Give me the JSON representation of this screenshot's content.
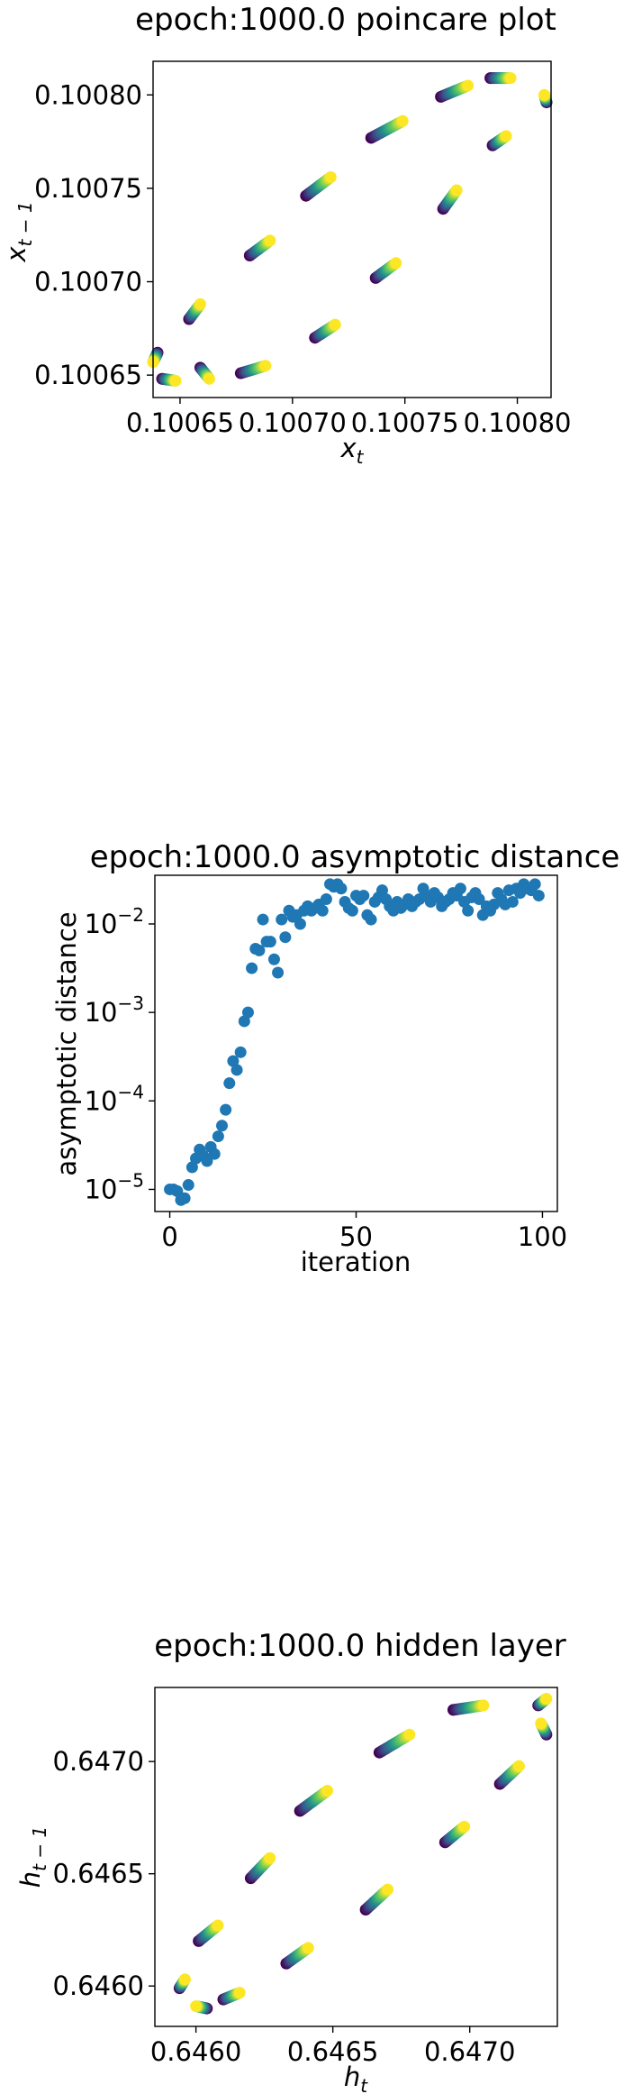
{
  "chart_data": [
    {
      "type": "scatter",
      "title": "epoch:1000.0 poincare plot",
      "xlabel_base": "x",
      "xlabel_sub": "t",
      "ylabel_base": "x",
      "ylabel_sub": "t − 1",
      "xlim": [
        0.100638,
        0.100815
      ],
      "ylim": [
        0.100638,
        0.100818
      ],
      "xticks": [
        0.10065,
        0.1007,
        0.10075,
        0.1008
      ],
      "xtick_labels": [
        "0.10065",
        "0.10070",
        "0.10075",
        "0.10080"
      ],
      "yticks": [
        0.10065,
        0.1007,
        0.10075,
        0.1008
      ],
      "ytick_labels": [
        "0.10065",
        "0.10070",
        "0.10075",
        "0.10080"
      ],
      "colormap": "viridis",
      "grid": false,
      "segments": [
        {
          "from": [
            0.100659,
            0.100654
          ],
          "to": [
            0.100663,
            0.100648
          ]
        },
        {
          "from": [
            0.10064,
            0.100662
          ],
          "to": [
            0.100638,
            0.100657
          ]
        },
        {
          "from": [
            0.100642,
            0.100648
          ],
          "to": [
            0.100648,
            0.100647
          ]
        },
        {
          "from": [
            0.100654,
            0.10068
          ],
          "to": [
            0.100659,
            0.100688
          ]
        },
        {
          "from": [
            0.100681,
            0.100714
          ],
          "to": [
            0.10069,
            0.100722
          ]
        },
        {
          "from": [
            0.100706,
            0.100746
          ],
          "to": [
            0.100717,
            0.100756
          ]
        },
        {
          "from": [
            0.100735,
            0.100777
          ],
          "to": [
            0.100749,
            0.100786
          ]
        },
        {
          "from": [
            0.100766,
            0.100799
          ],
          "to": [
            0.100778,
            0.100805
          ]
        },
        {
          "from": [
            0.100788,
            0.100809
          ],
          "to": [
            0.100797,
            0.100809
          ]
        },
        {
          "from": [
            0.100813,
            0.100796
          ],
          "to": [
            0.100812,
            0.1008
          ]
        },
        {
          "from": [
            0.100789,
            0.100773
          ],
          "to": [
            0.100795,
            0.100778
          ]
        },
        {
          "from": [
            0.100767,
            0.100739
          ],
          "to": [
            0.100773,
            0.100749
          ]
        },
        {
          "from": [
            0.100737,
            0.100702
          ],
          "to": [
            0.100746,
            0.10071
          ]
        },
        {
          "from": [
            0.10071,
            0.10067
          ],
          "to": [
            0.100719,
            0.100677
          ]
        },
        {
          "from": [
            0.100677,
            0.100651
          ],
          "to": [
            0.100688,
            0.100655
          ]
        }
      ]
    },
    {
      "type": "scatter",
      "title": "epoch:1000.0 asymptotic distance",
      "xlabel": "iteration",
      "ylabel": "asymptotic distance",
      "yscale": "log",
      "xlim": [
        -4,
        104
      ],
      "ylim_log10": [
        -5.25,
        -1.45
      ],
      "xticks": [
        0,
        50,
        100
      ],
      "xtick_labels": [
        "0",
        "50",
        "100"
      ],
      "yticks_log10": [
        -5,
        -4,
        -3,
        -2
      ],
      "ytick_base": "10",
      "ytick_exponents": [
        "−5",
        "−4",
        "−3",
        "−2"
      ],
      "color": "#1f77b4",
      "grid": false,
      "x": [
        0,
        1,
        2,
        3,
        4,
        5,
        6,
        7,
        8,
        9,
        10,
        11,
        12,
        13,
        14,
        15,
        16,
        17,
        18,
        19,
        20,
        21,
        22,
        23,
        24,
        25,
        26,
        27,
        28,
        29,
        30,
        31,
        32,
        33,
        34,
        35,
        36,
        37,
        38,
        39,
        40,
        41,
        42,
        43,
        44,
        45,
        46,
        47,
        48,
        49,
        50,
        51,
        52,
        53,
        54,
        55,
        56,
        57,
        58,
        59,
        60,
        61,
        62,
        63,
        64,
        65,
        66,
        67,
        68,
        69,
        70,
        71,
        72,
        73,
        74,
        75,
        76,
        77,
        78,
        79,
        80,
        81,
        82,
        83,
        84,
        85,
        86,
        87,
        88,
        89,
        90,
        91,
        92,
        93,
        94,
        95,
        96,
        97,
        98,
        99
      ],
      "y_log10": [
        -5.0,
        -5.0,
        -5.02,
        -5.12,
        -5.1,
        -4.95,
        -4.75,
        -4.65,
        -4.55,
        -4.62,
        -4.68,
        -4.52,
        -4.6,
        -4.4,
        -4.28,
        -4.1,
        -3.8,
        -3.55,
        -3.65,
        -3.45,
        -3.1,
        -3.0,
        -2.5,
        -2.28,
        -2.3,
        -1.95,
        -2.2,
        -2.2,
        -2.4,
        -2.55,
        -1.95,
        -2.15,
        -1.85,
        -1.92,
        -1.9,
        -2.0,
        -1.85,
        -1.8,
        -1.85,
        -1.82,
        -1.78,
        -1.85,
        -1.72,
        -1.55,
        -1.58,
        -1.55,
        -1.6,
        -1.75,
        -1.82,
        -1.85,
        -1.68,
        -1.72,
        -1.68,
        -1.9,
        -1.95,
        -1.75,
        -1.7,
        -1.62,
        -1.72,
        -1.8,
        -1.85,
        -1.75,
        -1.82,
        -1.78,
        -1.72,
        -1.8,
        -1.75,
        -1.72,
        -1.6,
        -1.68,
        -1.75,
        -1.65,
        -1.7,
        -1.8,
        -1.75,
        -1.72,
        -1.65,
        -1.68,
        -1.6,
        -1.75,
        -1.85,
        -1.7,
        -1.65,
        -1.72,
        -1.9,
        -1.8,
        -1.85,
        -1.78,
        -1.65,
        -1.72,
        -1.78,
        -1.62,
        -1.75,
        -1.6,
        -1.65,
        -1.55,
        -1.6,
        -1.62,
        -1.55,
        -1.68
      ]
    },
    {
      "type": "scatter",
      "title": "epoch:1000.0 hidden layer",
      "xlabel_base": "h",
      "xlabel_sub": "t",
      "ylabel_base": "h",
      "ylabel_sub": "t − 1",
      "xlim": [
        0.64585,
        0.64732
      ],
      "ylim": [
        0.64582,
        0.64733
      ],
      "xticks": [
        0.646,
        0.6465,
        0.647
      ],
      "xtick_labels": [
        "0.6460",
        "0.6465",
        "0.6470"
      ],
      "yticks": [
        0.646,
        0.6465,
        0.647
      ],
      "ytick_labels": [
        "0.6460",
        "0.6465",
        "0.6470"
      ],
      "colormap": "viridis",
      "grid": false,
      "segments": [
        {
          "from": [
            0.64604,
            0.6459
          ],
          "to": [
            0.646,
            0.64591
          ]
        },
        {
          "from": [
            0.64594,
            0.64599
          ],
          "to": [
            0.64596,
            0.64603
          ]
        },
        {
          "from": [
            0.64601,
            0.6462
          ],
          "to": [
            0.64608,
            0.64627
          ]
        },
        {
          "from": [
            0.6462,
            0.64648
          ],
          "to": [
            0.64627,
            0.64657
          ]
        },
        {
          "from": [
            0.64638,
            0.64678
          ],
          "to": [
            0.64648,
            0.64687
          ]
        },
        {
          "from": [
            0.64667,
            0.64704
          ],
          "to": [
            0.64678,
            0.64712
          ]
        },
        {
          "from": [
            0.64694,
            0.64723
          ],
          "to": [
            0.64705,
            0.64725
          ]
        },
        {
          "from": [
            0.64725,
            0.64725
          ],
          "to": [
            0.64728,
            0.64728
          ]
        },
        {
          "from": [
            0.64728,
            0.64712
          ],
          "to": [
            0.64726,
            0.64717
          ]
        },
        {
          "from": [
            0.64711,
            0.6469
          ],
          "to": [
            0.64718,
            0.64698
          ]
        },
        {
          "from": [
            0.64691,
            0.64664
          ],
          "to": [
            0.64698,
            0.64671
          ]
        },
        {
          "from": [
            0.64662,
            0.64634
          ],
          "to": [
            0.6467,
            0.64643
          ]
        },
        {
          "from": [
            0.64633,
            0.6461
          ],
          "to": [
            0.64641,
            0.64617
          ]
        },
        {
          "from": [
            0.6461,
            0.64594
          ],
          "to": [
            0.64616,
            0.64597
          ]
        }
      ]
    }
  ]
}
